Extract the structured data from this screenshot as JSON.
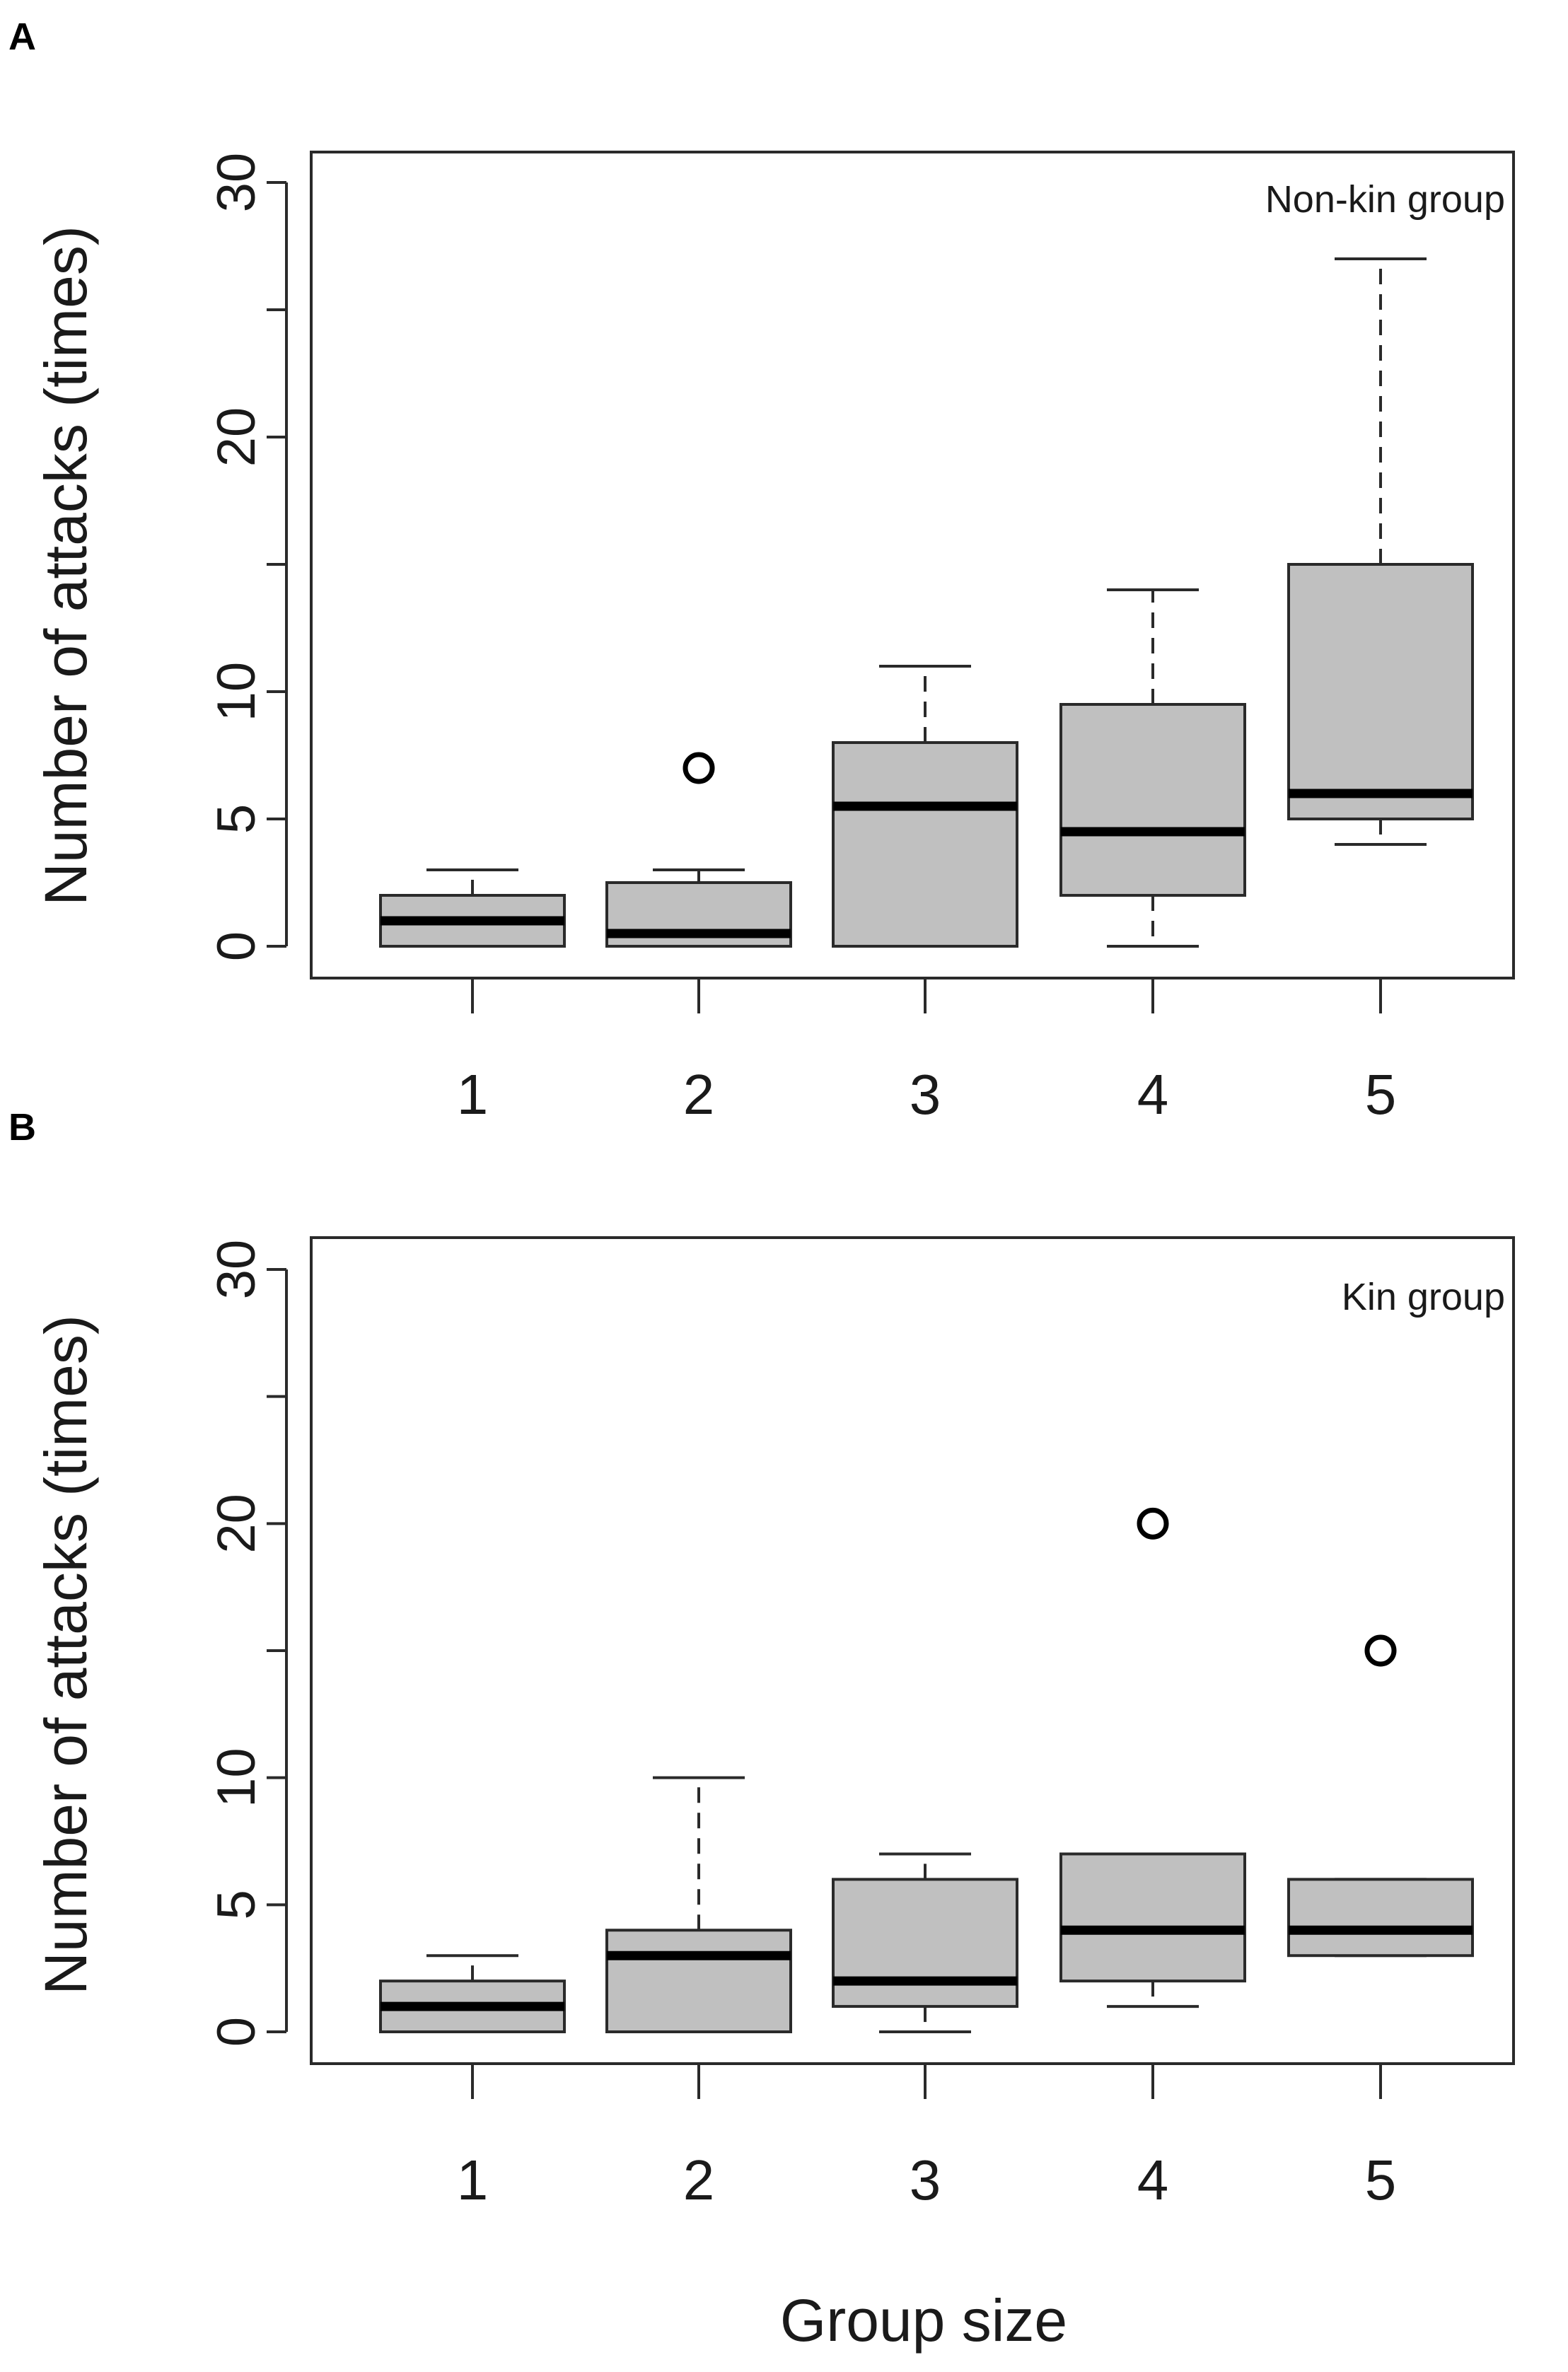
{
  "colors": {
    "box_fill": "#c0c0c0",
    "stroke": "#2a2a2a",
    "median": "#000000",
    "background": "#ffffff"
  },
  "chart_data": [
    {
      "type": "boxplot",
      "panel": "A",
      "annotation": "Non-kin group",
      "ylabel": "Number of attacks (times)",
      "xlabel": "",
      "ylim": [
        0,
        30
      ],
      "yticks": [
        0,
        5,
        10,
        15,
        20,
        25,
        30
      ],
      "ytick_labels": [
        "0",
        "5",
        "10",
        "",
        "20",
        "",
        "30"
      ],
      "categories": [
        "1",
        "2",
        "3",
        "4",
        "5"
      ],
      "boxes": [
        {
          "category": "1",
          "low": 0,
          "q1": 0,
          "median": 1,
          "q3": 2,
          "high": 3,
          "outliers": []
        },
        {
          "category": "2",
          "low": 0,
          "q1": 0,
          "median": 0.5,
          "q3": 2.5,
          "high": 3,
          "outliers": [
            7
          ]
        },
        {
          "category": "3",
          "low": 0,
          "q1": 0,
          "median": 5.5,
          "q3": 8,
          "high": 11,
          "outliers": []
        },
        {
          "category": "4",
          "low": 0,
          "q1": 2,
          "median": 4.5,
          "q3": 9.5,
          "high": 14,
          "outliers": []
        },
        {
          "category": "5",
          "low": 4,
          "q1": 5,
          "median": 6,
          "q3": 15,
          "high": 27,
          "outliers": []
        }
      ]
    },
    {
      "type": "boxplot",
      "panel": "B",
      "annotation": "Kin group",
      "ylabel": "Number of attacks (times)",
      "xlabel": "Group size",
      "ylim": [
        0,
        30
      ],
      "yticks": [
        0,
        5,
        10,
        15,
        20,
        25,
        30
      ],
      "ytick_labels": [
        "0",
        "5",
        "10",
        "",
        "20",
        "",
        "30"
      ],
      "categories": [
        "1",
        "2",
        "3",
        "4",
        "5"
      ],
      "boxes": [
        {
          "category": "1",
          "low": 0,
          "q1": 0,
          "median": 1,
          "q3": 2,
          "high": 3,
          "outliers": []
        },
        {
          "category": "2",
          "low": 0,
          "q1": 0,
          "median": 3,
          "q3": 4,
          "high": 10,
          "outliers": []
        },
        {
          "category": "3",
          "low": 0,
          "q1": 1,
          "median": 2,
          "q3": 6,
          "high": 7,
          "outliers": []
        },
        {
          "category": "4",
          "low": 1,
          "q1": 2,
          "median": 4,
          "q3": 7,
          "high": 7,
          "outliers": [
            20
          ]
        },
        {
          "category": "5",
          "low": 3,
          "q1": 3,
          "median": 4,
          "q3": 6,
          "high": 6,
          "outliers": [
            15
          ]
        }
      ]
    }
  ]
}
